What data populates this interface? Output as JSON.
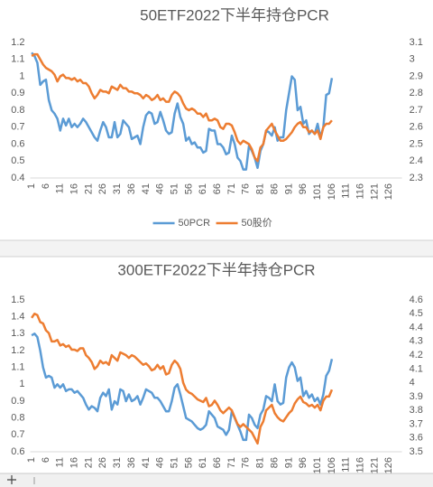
{
  "chart_data": [
    {
      "type": "line",
      "title": "50ETF2022下半年持仓PCR",
      "legend": "bottom",
      "categories": [
        1,
        null,
        null,
        null,
        null,
        6,
        null,
        null,
        null,
        null,
        11,
        null,
        null,
        null,
        null,
        16,
        null,
        null,
        null,
        null,
        21,
        null,
        null,
        null,
        null,
        26,
        null,
        null,
        null,
        null,
        31,
        null,
        null,
        null,
        null,
        36,
        null,
        null,
        null,
        null,
        41,
        null,
        null,
        null,
        null,
        46,
        null,
        null,
        null,
        null,
        51,
        null,
        null,
        null,
        null,
        56,
        null,
        null,
        null,
        null,
        61,
        null,
        null,
        null,
        null,
        66,
        null,
        null,
        null,
        null,
        71,
        null,
        null,
        null,
        null,
        76,
        null,
        null,
        null,
        null,
        81,
        null,
        null,
        null,
        null,
        86,
        null,
        null,
        null,
        null,
        91,
        null,
        null,
        null,
        null,
        96,
        null,
        null,
        null,
        null,
        101,
        null,
        null,
        null,
        null,
        106,
        null,
        null,
        null,
        null,
        111,
        null,
        null,
        null,
        null,
        116,
        null,
        null,
        null,
        null,
        121,
        null,
        null,
        null,
        null,
        126,
        null,
        null,
        null,
        null
      ],
      "ylim": [
        0.4,
        1.2
      ],
      "yticks": [
        0.4,
        0.5,
        0.6,
        0.7,
        0.8,
        0.9,
        1,
        1.1,
        1.2
      ],
      "y2lim": [
        2.3,
        3.1
      ],
      "y2ticks": [
        2.3,
        2.4,
        2.5,
        2.6,
        2.7,
        2.8,
        2.9,
        3,
        3.1
      ],
      "series": [
        {
          "name": "50PCR",
          "color": "#5b9bd5",
          "values": [
            1.14,
            1.12,
            1.08,
            0.95,
            0.97,
            0.98,
            0.86,
            0.8,
            0.78,
            0.75,
            0.68,
            0.75,
            0.71,
            0.75,
            0.7,
            0.72,
            0.7,
            0.72,
            0.75,
            0.73,
            0.7,
            0.67,
            0.64,
            0.62,
            0.68,
            0.73,
            0.7,
            0.64,
            0.64,
            0.73,
            0.64,
            0.66,
            0.74,
            0.72,
            0.7,
            0.63,
            0.64,
            0.65,
            0.6,
            0.7,
            0.77,
            0.79,
            0.78,
            0.72,
            0.73,
            0.79,
            0.74,
            0.68,
            0.66,
            0.67,
            0.78,
            0.84,
            0.76,
            0.72,
            0.62,
            0.64,
            0.6,
            0.61,
            0.58,
            0.58,
            0.55,
            0.56,
            0.69,
            0.68,
            0.68,
            0.6,
            0.6,
            0.58,
            0.54,
            0.55,
            0.65,
            0.6,
            0.52,
            0.5,
            0.45,
            0.45,
            0.59,
            0.56,
            0.52,
            0.46,
            0.56,
            0.6,
            0.68,
            0.67,
            0.65,
            0.7,
            0.62,
            0.64,
            0.64,
            0.8,
            0.9,
            1.0,
            0.98,
            0.8,
            0.82,
            0.72,
            0.74,
            0.66,
            0.68,
            0.66,
            0.72,
            0.64,
            0.7,
            0.89,
            0.9,
            0.99,
            null,
            null,
            null,
            null,
            null,
            null,
            null,
            null,
            null,
            null,
            null,
            null,
            null,
            null,
            null,
            null,
            null,
            null,
            null,
            null,
            null,
            null,
            null,
            null
          ]
        },
        {
          "name": "50股价",
          "color": "#ed7d31",
          "axis": "y2",
          "values": [
            3.02,
            3.03,
            3.03,
            3.0,
            2.97,
            2.95,
            2.94,
            2.93,
            2.91,
            2.87,
            2.9,
            2.91,
            2.89,
            2.89,
            2.88,
            2.89,
            2.87,
            2.88,
            2.86,
            2.86,
            2.84,
            2.8,
            2.77,
            2.79,
            2.82,
            2.81,
            2.81,
            2.8,
            2.84,
            2.83,
            2.82,
            2.85,
            2.83,
            2.83,
            2.81,
            2.81,
            2.8,
            2.8,
            2.79,
            2.77,
            2.79,
            2.78,
            2.76,
            2.77,
            2.79,
            2.76,
            2.77,
            2.75,
            2.75,
            2.79,
            2.81,
            2.8,
            2.78,
            2.74,
            2.71,
            2.7,
            2.71,
            2.7,
            2.68,
            2.68,
            2.66,
            2.68,
            2.64,
            2.64,
            2.65,
            2.64,
            2.6,
            2.59,
            2.62,
            2.62,
            2.61,
            2.57,
            2.52,
            2.5,
            2.52,
            2.51,
            2.5,
            2.47,
            2.42,
            2.4,
            2.48,
            2.5,
            2.58,
            2.6,
            2.62,
            2.58,
            2.55,
            2.52,
            2.52,
            2.53,
            2.55,
            2.57,
            2.6,
            2.62,
            2.63,
            2.6,
            2.6,
            2.57,
            2.58,
            2.56,
            2.58,
            2.53,
            2.6,
            2.62,
            2.62,
            2.64,
            null,
            null,
            null,
            null,
            null,
            null,
            null,
            null,
            null,
            null,
            null,
            null,
            null,
            null,
            null,
            null,
            null,
            null,
            null,
            null,
            null,
            null,
            null,
            null
          ]
        }
      ]
    },
    {
      "type": "line",
      "title": "300ETF2022下半年持仓PCR",
      "categories": [
        1,
        null,
        null,
        null,
        null,
        6,
        null,
        null,
        null,
        null,
        11,
        null,
        null,
        null,
        null,
        16,
        null,
        null,
        null,
        null,
        21,
        null,
        null,
        null,
        null,
        26,
        null,
        null,
        null,
        null,
        31,
        null,
        null,
        null,
        null,
        36,
        null,
        null,
        null,
        null,
        41,
        null,
        null,
        null,
        null,
        46,
        null,
        null,
        null,
        null,
        51,
        null,
        null,
        null,
        null,
        56,
        null,
        null,
        null,
        null,
        61,
        null,
        null,
        null,
        null,
        66,
        null,
        null,
        null,
        null,
        71,
        null,
        null,
        null,
        null,
        76,
        null,
        null,
        null,
        null,
        81,
        null,
        null,
        null,
        null,
        86,
        null,
        null,
        null,
        null,
        91,
        null,
        null,
        null,
        null,
        96,
        null,
        null,
        null,
        null,
        101,
        null,
        null,
        null,
        null,
        106,
        null,
        null,
        null,
        null,
        111,
        null,
        null,
        null,
        null,
        116,
        null,
        null,
        null,
        null,
        121,
        null,
        null,
        null,
        null,
        126,
        null,
        null,
        null,
        null
      ],
      "ylim": [
        0.6,
        1.5
      ],
      "yticks": [
        0.6,
        0.7,
        0.8,
        0.9,
        1,
        1.1,
        1.2,
        1.3,
        1.4,
        1.5
      ],
      "y2lim": [
        3.5,
        4.6
      ],
      "y2ticks": [
        3.5,
        3.6,
        3.7,
        3.8,
        3.9,
        4,
        4.1,
        4.2,
        4.3,
        4.4,
        4.5,
        4.6
      ],
      "series": [
        {
          "color": "#5b9bd5",
          "values": [
            1.29,
            1.3,
            1.28,
            1.2,
            1.1,
            1.04,
            1.05,
            1.04,
            0.98,
            1.0,
            0.98,
            1.0,
            0.96,
            0.97,
            0.97,
            0.95,
            0.96,
            0.94,
            0.92,
            0.88,
            0.85,
            0.87,
            0.86,
            0.84,
            0.92,
            0.95,
            0.93,
            0.97,
            0.85,
            0.9,
            0.88,
            0.97,
            0.96,
            0.9,
            0.94,
            0.9,
            0.91,
            0.93,
            0.88,
            0.92,
            0.97,
            0.96,
            0.95,
            0.92,
            0.92,
            0.9,
            0.87,
            0.84,
            0.84,
            0.9,
            0.98,
            1.0,
            0.94,
            0.87,
            0.8,
            0.79,
            0.78,
            0.76,
            0.74,
            0.73,
            0.74,
            0.76,
            0.84,
            0.82,
            0.8,
            0.75,
            0.74,
            0.73,
            0.7,
            0.73,
            0.84,
            0.8,
            0.76,
            0.72,
            0.67,
            0.67,
            0.82,
            0.8,
            0.76,
            0.74,
            0.82,
            0.85,
            0.93,
            0.92,
            0.9,
            1.0,
            0.9,
            0.88,
            0.89,
            1.04,
            1.1,
            1.13,
            1.1,
            1.02,
            1.04,
            0.93,
            0.96,
            0.92,
            0.94,
            0.9,
            0.92,
            0.88,
            0.94,
            1.05,
            1.08,
            1.15,
            null,
            null,
            null,
            null,
            null,
            null,
            null,
            null,
            null,
            null,
            null,
            null,
            null,
            null,
            null,
            null,
            null,
            null,
            null,
            null,
            null,
            null,
            null,
            null
          ]
        },
        {
          "color": "#ed7d31",
          "axis": "y2",
          "values": [
            4.47,
            4.5,
            4.49,
            4.44,
            4.43,
            4.38,
            4.36,
            4.3,
            4.3,
            4.31,
            4.27,
            4.28,
            4.26,
            4.27,
            4.24,
            4.24,
            4.23,
            4.25,
            4.25,
            4.2,
            4.18,
            4.15,
            4.1,
            4.12,
            4.16,
            4.14,
            4.15,
            4.13,
            4.2,
            4.18,
            4.16,
            4.22,
            4.21,
            4.2,
            4.18,
            4.2,
            4.19,
            4.17,
            4.15,
            4.13,
            4.14,
            4.12,
            4.09,
            4.1,
            4.13,
            4.1,
            4.12,
            4.06,
            4.07,
            4.13,
            4.16,
            4.14,
            4.1,
            4.0,
            3.95,
            3.93,
            3.92,
            3.9,
            3.88,
            3.87,
            3.86,
            3.89,
            3.83,
            3.84,
            3.87,
            3.84,
            3.8,
            3.78,
            3.8,
            3.82,
            3.8,
            3.75,
            3.7,
            3.68,
            3.7,
            3.68,
            3.66,
            3.64,
            3.6,
            3.56,
            3.68,
            3.72,
            3.8,
            3.82,
            3.84,
            3.78,
            3.75,
            3.73,
            3.72,
            3.75,
            3.78,
            3.8,
            3.85,
            3.88,
            3.9,
            3.86,
            3.85,
            3.83,
            3.84,
            3.82,
            3.84,
            3.8,
            3.87,
            3.9,
            3.9,
            3.95,
            null,
            null,
            null,
            null,
            null,
            null,
            null,
            null,
            null,
            null,
            null,
            null,
            null,
            null,
            null,
            null,
            null,
            null,
            null,
            null,
            null,
            null,
            null,
            null
          ]
        }
      ]
    }
  ]
}
